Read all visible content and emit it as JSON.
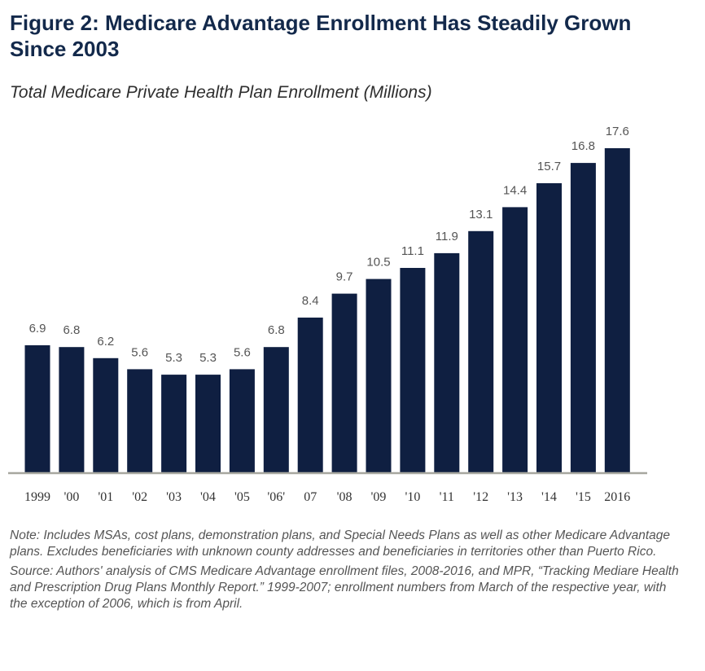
{
  "title": "Figure 2: Medicare Advantage Enrollment Has Steadily Grown Since 2003",
  "subtitle": "Total Medicare Private Health Plan Enrollment (Millions)",
  "chart_data": {
    "type": "bar",
    "title": "",
    "xlabel": "",
    "ylabel": "",
    "ylim": [
      0,
      17.6
    ],
    "grid": false,
    "categories": [
      "1999",
      "'00",
      "'01",
      "'02",
      "'03",
      "'04",
      "'05",
      "'06'",
      "07",
      "'08",
      "'09",
      "'10",
      "'11",
      "'12",
      "'13",
      "'14",
      "'15",
      "2016"
    ],
    "values": [
      6.9,
      6.8,
      6.2,
      5.6,
      5.3,
      5.3,
      5.6,
      6.8,
      8.4,
      9.7,
      10.5,
      11.1,
      11.9,
      13.1,
      14.4,
      15.7,
      16.8,
      17.6
    ],
    "value_labels": [
      "6.9",
      "6.8",
      "6.2",
      "5.6",
      "5.3",
      "5.3",
      "5.6",
      "6.8",
      "8.4",
      "9.7",
      "10.5",
      "11.1",
      "11.9",
      "13.1",
      "14.4",
      "15.7",
      "16.8",
      "17.6"
    ],
    "bar_color": "#0f1f41"
  },
  "notes": {
    "note": "Note: Includes MSAs, cost plans, demonstration plans, and Special Needs Plans as well as other Medicare Advantage plans. Excludes beneficiaries with unknown county addresses and beneficiaries in territories other than Puerto Rico.",
    "source": "Source: Authors' analysis of CMS Medicare Advantage enrollment files, 2008-2016, and MPR, “Tracking Mediare Health and Prescription Drug Plans Monthly Report.” 1999-2007; enrollment numbers from March of the respective year, with the exception of 2006, which is from April."
  }
}
